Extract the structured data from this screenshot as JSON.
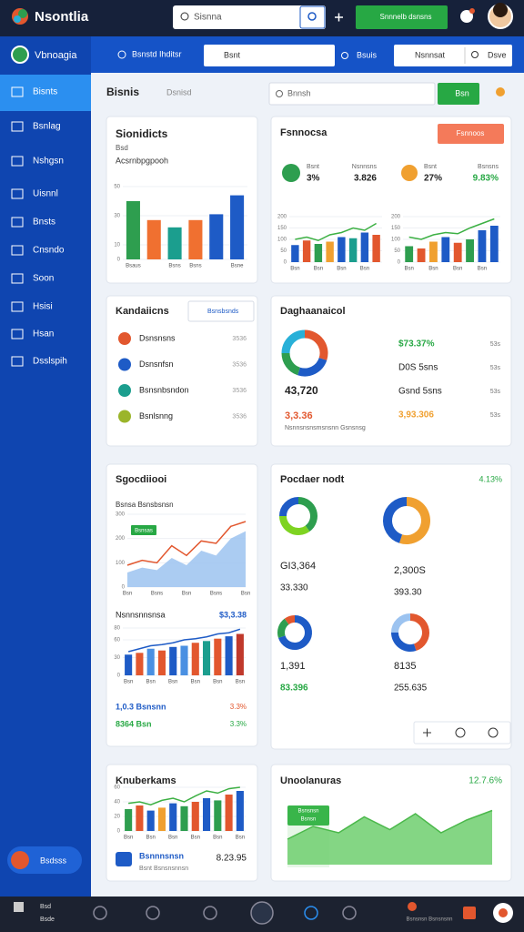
{
  "topbar": {
    "brand": "Nsontlia",
    "search": "Sisnna",
    "action": "Snnnelb dsnsns"
  },
  "subbar": {
    "workspace": "Vbnoagia",
    "location": "Bsnstd Ihditsr",
    "field": "Bsnt",
    "filter": "Bsuis",
    "select": "Nsnnsat",
    "save": "Dsve"
  },
  "sidebar": {
    "items": [
      "Bisnts",
      "Bsnlag",
      "Nshgsn",
      "Uisnnl",
      "Bnsts",
      "Cnsndo",
      "Soon",
      "Hsisi",
      "Hsan",
      "Dsslspih"
    ],
    "footer": "Bsdsss"
  },
  "header": {
    "tabs": [
      "Bisnis",
      "Dsnisd"
    ],
    "search": "Bnnsh",
    "button": "Bsn"
  },
  "cards": [
    {
      "title": "Sionidicts",
      "subtitle": "Bsd",
      "caption": "Acsrnbpgpooh",
      "chart": {
        "type": "bar",
        "values": [
          40,
          27,
          22,
          27,
          31,
          44
        ],
        "colors": [
          "#2e9e4f",
          "#f07030",
          "#1b9e8e",
          "#f07030",
          "#1e5bc6",
          "#1e5bc6"
        ],
        "categories": [
          "Bsaus",
          null,
          "Bsns",
          "Bsns",
          null,
          "Bsne"
        ],
        "ylim": [
          0,
          50
        ],
        "yticks": [
          0,
          10,
          30,
          50
        ]
      }
    },
    {
      "title": "Fsnnocsa",
      "button": "Fsnnoos",
      "stats": [
        {
          "label": "Bsnt",
          "value": "3%"
        },
        {
          "label": "Nsnnsns",
          "value": "3.826"
        },
        {
          "label": "Bsnt",
          "value": "27%"
        },
        {
          "label": "Bsnsns",
          "value": "9.83%"
        }
      ],
      "charts": [
        {
          "type": "bar",
          "values": [
            75,
            95,
            80,
            90,
            110,
            105,
            130,
            120
          ],
          "colors": [
            "#1e5bc6",
            "#e2572e",
            "#2e9e4f",
            "#f0a030",
            "#1e5bc6",
            "#1b9e8e",
            "#1e5bc6",
            "#e2572e"
          ],
          "categories": [
            "Bsn",
            null,
            "Bsn",
            null,
            "Bsn",
            null,
            "Bsn",
            null
          ],
          "ylim": [
            0,
            200
          ],
          "yticks": [
            0,
            50,
            100,
            150,
            200
          ],
          "line": {
            "values": [
              100,
              110,
              95,
              120,
              130,
              150,
              140,
              170
            ],
            "color": "#3cb043"
          }
        },
        {
          "type": "bar",
          "values": [
            70,
            60,
            90,
            110,
            85,
            100,
            140,
            160
          ],
          "colors": [
            "#2e9e4f",
            "#e2572e",
            "#f0a030",
            "#1e5bc6",
            "#e2572e",
            "#2e9e4f",
            "#1e5bc6",
            "#1e5bc6"
          ],
          "categories": [
            "Bsn",
            null,
            "Bsn",
            null,
            "Bsn",
            null,
            "Bsn",
            null
          ],
          "ylim": [
            0,
            200
          ],
          "yticks": [
            0,
            50,
            100,
            150,
            200
          ],
          "line": {
            "values": [
              110,
              100,
              120,
              130,
              125,
              150,
              170,
              190
            ],
            "color": "#3cb043"
          }
        }
      ]
    },
    {
      "title": "Kandaiicns",
      "search": "Bsnsbsnds",
      "items": [
        {
          "name": "Dsnsnsns",
          "value": "3536"
        },
        {
          "name": "Dsnsnfsn",
          "value": "3536"
        },
        {
          "name": "Bsnsnbsndon",
          "value": "3536"
        },
        {
          "name": "Bsnlsnng",
          "value": "3536"
        }
      ]
    },
    {
      "title": "Daghaanaicol",
      "total": "43,720",
      "highlight": "3,3.36",
      "caption": "Nsnnsnsnsmsnsnn Gsnsnsg",
      "chart": {
        "type": "donut",
        "values": [
          30,
          25,
          20,
          25
        ],
        "colors": [
          "#e2572e",
          "#1e5bc6",
          "#2e9e4f",
          "#28b0d8"
        ]
      },
      "rows": [
        {
          "label": "$73.37%",
          "value": "53s"
        },
        {
          "label": "D0S 5sns",
          "value": "53s"
        },
        {
          "label": "Gsnd 5sns",
          "value": "53s"
        },
        {
          "label": "3,93.306",
          "value": "53s"
        }
      ]
    },
    {
      "title": "Sgocdiiooi",
      "subtitle": "Bsnsa Bsnsbsnsn",
      "badge": "Bsnsas",
      "chart": {
        "type": "area",
        "values": [
          60,
          80,
          70,
          120,
          90,
          150,
          130,
          200,
          230
        ],
        "color": "#9cc3f0",
        "categories": [
          "Bsn",
          null,
          "Bsns",
          null,
          "Bsn",
          null,
          "Bsns",
          null,
          "Bsn"
        ],
        "ylim": [
          0,
          300
        ],
        "yticks": [
          0,
          100,
          200,
          300
        ],
        "line": {
          "values": [
            90,
            110,
            100,
            170,
            130,
            190,
            180,
            250,
            270
          ],
          "color": "#e2572e"
        }
      },
      "title2": "Nsnnsnnsnsa",
      "value2": "$3,3.38",
      "chart2": {
        "type": "bar",
        "values": [
          35,
          38,
          45,
          42,
          48,
          50,
          55,
          58,
          62,
          66,
          70
        ],
        "colors": [
          "#1e5bc6",
          "#e2572e",
          "#4a90e2",
          "#e2572e",
          "#1e5bc6",
          "#4a90e2",
          "#e2572e",
          "#1b9e8e",
          "#e2572e",
          "#1e5bc6",
          "#c0392b"
        ],
        "categories": [
          "Bsn",
          null,
          "Bsn",
          null,
          "Bsn",
          null,
          "Bsn",
          null,
          "Bsn",
          null,
          "Bsn"
        ],
        "ylim": [
          0,
          80
        ],
        "yticks": [
          0,
          30,
          60,
          80
        ],
        "line": {
          "values": [
            40,
            45,
            50,
            52,
            55,
            60,
            62,
            65,
            70,
            72,
            78
          ],
          "color": "#1e5bc6"
        }
      },
      "rows": [
        {
          "label": "1,0.3 Bsnsnn",
          "value": "3.3%"
        },
        {
          "label": "8364 Bsn",
          "value": "3.3%"
        }
      ]
    },
    {
      "title": "Pocdaer nodt",
      "change": "4.13%",
      "donuts": [
        {
          "values": [
            40,
            35,
            25
          ],
          "colors": [
            "#2e9e4f",
            "#7ed321",
            "#1e5bc6"
          ],
          "value": "GI3,364",
          "sub": "33.330"
        },
        {
          "values": [
            55,
            45
          ],
          "colors": [
            "#f0a030",
            "#1e5bc6"
          ],
          "value": "2,300S",
          "sub": "393.30"
        },
        {
          "values": [
            70,
            20,
            10
          ],
          "colors": [
            "#1e5bc6",
            "#2e9e4f",
            "#e2572e"
          ],
          "value": "1,391",
          "sub": "83.396"
        },
        {
          "values": [
            45,
            30,
            25
          ],
          "colors": [
            "#e2572e",
            "#1e5bc6",
            "#9cc3f0"
          ],
          "value": "8135",
          "sub": "255.635"
        }
      ]
    },
    {
      "title": "Knuberkams",
      "label": "Bsnnnsnsn",
      "value": "8.23.95",
      "caption": "Bsnt Bsnsnsnnsn",
      "chart": {
        "type": "bar",
        "values": [
          30,
          35,
          28,
          32,
          38,
          34,
          40,
          45,
          42,
          50,
          55
        ],
        "colors": [
          "#2e9e4f",
          "#e2572e",
          "#1e5bc6",
          "#f0a030",
          "#1e5bc6",
          "#2e9e4f",
          "#e2572e",
          "#1e5bc6",
          "#2e9e4f",
          "#e2572e",
          "#1e5bc6"
        ],
        "categories": [
          "Bsn",
          null,
          "Bsn",
          null,
          "Bsn",
          null,
          "Bsn",
          null,
          "Bsn",
          null,
          "Bsn"
        ],
        "ylim": [
          0,
          60
        ],
        "yticks": [
          0,
          20,
          40,
          60
        ],
        "line": {
          "values": [
            38,
            40,
            36,
            42,
            45,
            40,
            48,
            55,
            52,
            58,
            60
          ],
          "color": "#3cb043"
        }
      }
    },
    {
      "title": "Unoolanuras",
      "change": "12.7.6%",
      "badge": "Bsnsnsn",
      "badge_sub": "Bsnsn",
      "chart": {
        "type": "area",
        "values": [
          40,
          60,
          50,
          75,
          55,
          80,
          50,
          70,
          85
        ],
        "color": "#6fcf6f",
        "ylim": [
          0,
          100
        ],
        "line": {
          "values": [
            40,
            60,
            50,
            75,
            55,
            80,
            50,
            70,
            85
          ],
          "color": "#4bb84b"
        }
      }
    }
  ],
  "bottomnav": {
    "items": [
      "Bsd",
      "Bsde"
    ],
    "status": "Bsnsnsn Bsnsnsnn"
  }
}
